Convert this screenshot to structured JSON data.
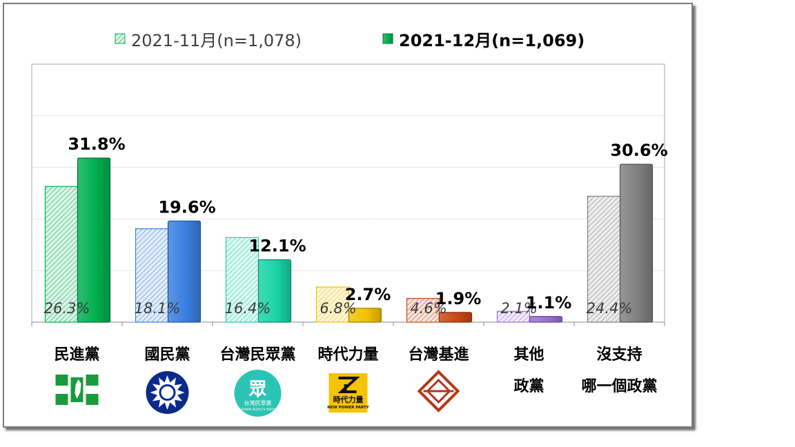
{
  "chart_data": {
    "type": "bar",
    "categories": [
      "民進黨",
      "國民黨",
      "台灣民眾黨",
      "時代力量",
      "台灣基進",
      "其他政黨",
      "沒支持哪一個政黨"
    ],
    "category_lines": [
      [
        "民進黨"
      ],
      [
        "國民黨"
      ],
      [
        "台灣民眾黨"
      ],
      [
        "時代力量"
      ],
      [
        "台灣基進"
      ],
      [
        "其他",
        "政黨"
      ],
      [
        "沒支持",
        "哪一個政黨"
      ]
    ],
    "series": [
      {
        "name": "2021-11月(n=1,078)",
        "values": [
          26.3,
          18.1,
          16.4,
          6.8,
          4.6,
          2.1,
          24.4
        ],
        "labels": [
          "26.3%",
          "18.1%",
          "16.4%",
          "6.8%",
          "4.6%",
          "2.1%",
          "24.4%"
        ],
        "style": "hatched"
      },
      {
        "name": "2021-12月(n=1,069)",
        "values": [
          31.8,
          19.6,
          12.1,
          2.7,
          1.9,
          1.1,
          30.6
        ],
        "labels": [
          "31.8%",
          "19.6%",
          "12.1%",
          "2.7%",
          "1.9%",
          "1.1%",
          "30.6%"
        ],
        "style": "solid"
      }
    ],
    "colors": [
      "#00b050",
      "#3a7fe0",
      "#19d3a6",
      "#f2c200",
      "#c84814",
      "#9b6fd8",
      "#7f7f7f"
    ],
    "ylim": [
      0,
      50
    ],
    "grid": true,
    "legend": "top",
    "logos": [
      "dpp-logo",
      "kmt-logo",
      "tpp-logo",
      "npp-logo",
      "tsp-logo",
      "",
      ""
    ],
    "logo_text": {
      "tpp": [
        "眾",
        "台灣民眾黨",
        "TAIWAN PEOPLE'S PARTY"
      ],
      "npp": [
        "時代力量",
        "NEW POWER PARTY"
      ]
    }
  }
}
